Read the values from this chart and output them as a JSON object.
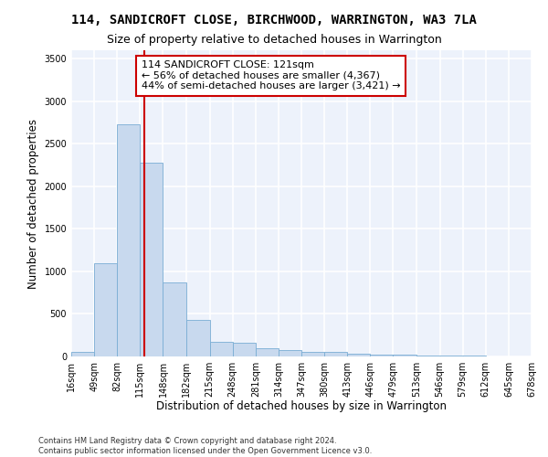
{
  "title": "114, SANDICROFT CLOSE, BIRCHWOOD, WARRINGTON, WA3 7LA",
  "subtitle": "Size of property relative to detached houses in Warrington",
  "xlabel": "Distribution of detached houses by size in Warrington",
  "ylabel": "Number of detached properties",
  "bar_color": "#c8d9ee",
  "bar_edge_color": "#7aadd4",
  "background_color": "#edf2fb",
  "grid_color": "#ffffff",
  "bin_edges": [
    16,
    49,
    82,
    115,
    148,
    182,
    215,
    248,
    281,
    314,
    347,
    380,
    413,
    446,
    479,
    513,
    546,
    579,
    612,
    645,
    678
  ],
  "bar_heights": [
    55,
    1100,
    2730,
    2280,
    875,
    430,
    170,
    165,
    100,
    70,
    55,
    50,
    35,
    25,
    20,
    15,
    10,
    8,
    5,
    3
  ],
  "property_size": 121,
  "vline_color": "#cc0000",
  "annotation_line1": "114 SANDICROFT CLOSE: 121sqm",
  "annotation_line2": "← 56% of detached houses are smaller (4,367)",
  "annotation_line3": "44% of semi-detached houses are larger (3,421) →",
  "annotation_box_color": "#ffffff",
  "annotation_box_edge_color": "#cc0000",
  "ylim": [
    0,
    3600
  ],
  "yticks": [
    0,
    500,
    1000,
    1500,
    2000,
    2500,
    3000,
    3500
  ],
  "footer_line1": "Contains HM Land Registry data © Crown copyright and database right 2024.",
  "footer_line2": "Contains public sector information licensed under the Open Government Licence v3.0.",
  "title_fontsize": 10,
  "subtitle_fontsize": 9,
  "tick_label_fontsize": 7,
  "ylabel_fontsize": 8.5,
  "xlabel_fontsize": 8.5,
  "annotation_fontsize": 8,
  "footer_fontsize": 6
}
